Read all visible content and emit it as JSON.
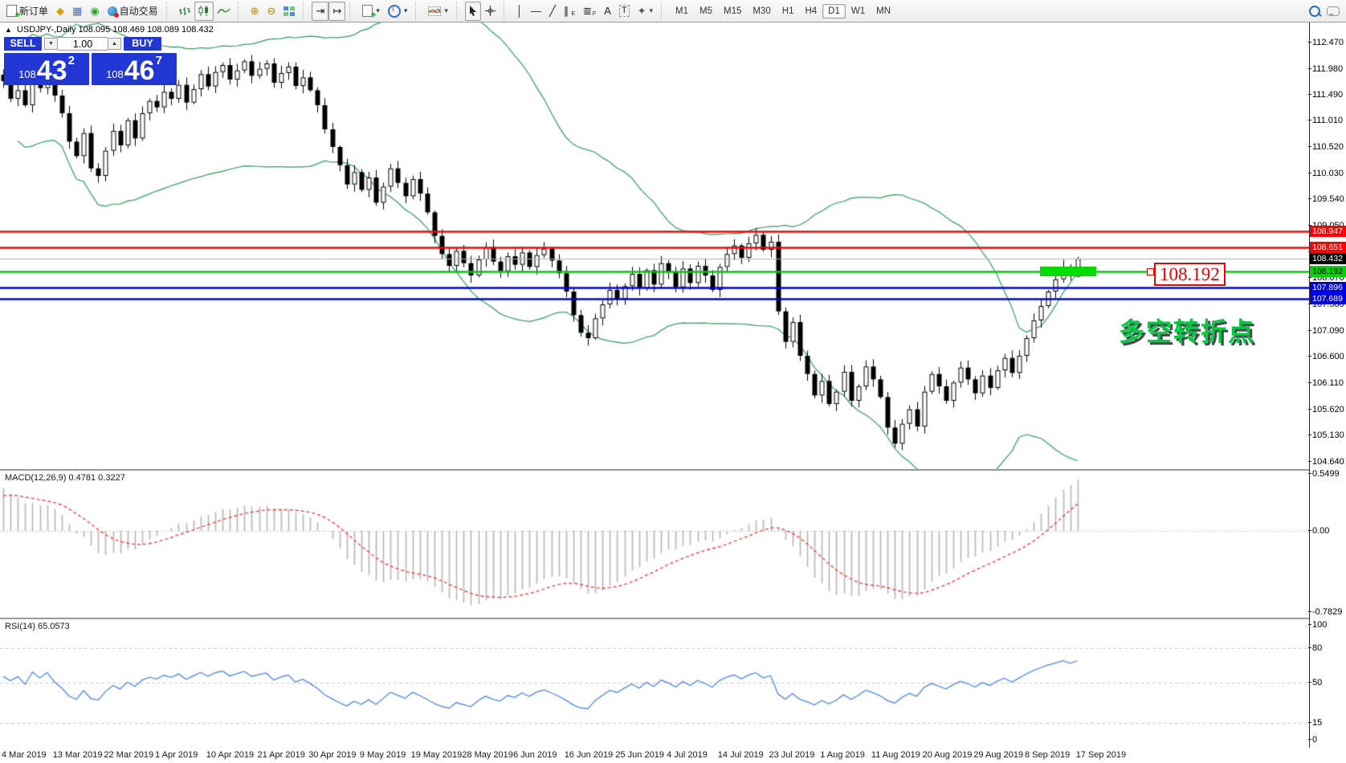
{
  "toolbar": {
    "new_order_label": "新订单",
    "auto_trading_label": "自动交易",
    "timeframes": [
      "M1",
      "M5",
      "M15",
      "M30",
      "H1",
      "H4",
      "D1",
      "W1",
      "MN"
    ],
    "active_timeframe": "D1",
    "text_tool_label": "A",
    "label_tool_label": "T"
  },
  "trade_panel": {
    "sell_label": "SELL",
    "buy_label": "BUY",
    "volume": "1.00",
    "sell_price": {
      "small": "108",
      "big": "43",
      "sup": "2"
    },
    "buy_price": {
      "small": "108",
      "big": "46",
      "sup": "7"
    }
  },
  "chart_title": {
    "symbol_line": "USDJPY-,Daily  108.095 108.469 108.089 108.432"
  },
  "chart_data": {
    "type": "candlestick",
    "symbol": "USDJPY-",
    "timeframe": "Daily",
    "quote": {
      "open": 108.095,
      "high": 108.469,
      "low": 108.089,
      "close": 108.432
    },
    "ylim": [
      104.56,
      112.845
    ],
    "closes": [
      111.75,
      111.42,
      111.58,
      111.3,
      111.85,
      111.62,
      111.9,
      111.48,
      111.15,
      110.62,
      110.35,
      110.78,
      110.12,
      109.98,
      110.45,
      110.82,
      110.55,
      111.02,
      110.68,
      111.15,
      111.38,
      111.26,
      111.55,
      111.42,
      111.68,
      111.35,
      111.6,
      111.88,
      111.65,
      111.92,
      112.05,
      111.78,
      111.95,
      112.12,
      111.85,
      111.98,
      112.08,
      111.72,
      111.9,
      112.02,
      111.66,
      111.82,
      111.58,
      111.3,
      110.85,
      110.52,
      110.18,
      109.82,
      110.05,
      109.72,
      109.95,
      109.48,
      109.78,
      110.12,
      109.85,
      109.6,
      109.92,
      109.65,
      109.3,
      108.86,
      108.52,
      108.3,
      108.58,
      108.35,
      108.12,
      108.42,
      108.65,
      108.38,
      108.2,
      108.48,
      108.32,
      108.55,
      108.28,
      108.5,
      108.62,
      108.4,
      108.16,
      107.82,
      107.38,
      107.05,
      106.95,
      107.32,
      107.58,
      107.85,
      107.68,
      107.92,
      108.15,
      107.88,
      108.22,
      107.95,
      108.35,
      108.18,
      107.9,
      108.25,
      107.98,
      108.3,
      108.12,
      107.85,
      108.28,
      108.52,
      108.68,
      108.45,
      108.72,
      108.88,
      108.6,
      108.75,
      107.45,
      106.88,
      107.25,
      106.62,
      106.28,
      105.88,
      106.15,
      105.72,
      105.95,
      106.32,
      105.78,
      106.05,
      106.42,
      106.18,
      105.85,
      105.28,
      104.98,
      105.35,
      105.62,
      105.3,
      105.95,
      106.28,
      106.05,
      105.78,
      106.12,
      106.4,
      106.18,
      105.92,
      106.25,
      106.02,
      106.35,
      106.58,
      106.3,
      106.62,
      106.95,
      107.28,
      107.55,
      107.82,
      108.05,
      108.28,
      108.15,
      108.432
    ],
    "price_ticks": [
      "112.470",
      "111.980",
      "111.490",
      "111.010",
      "110.520",
      "110.030",
      "109.540",
      "109.050",
      "108.560",
      "108.070",
      "107.580",
      "107.090",
      "106.600",
      "106.110",
      "105.620",
      "105.130",
      "104.640"
    ],
    "hlines": [
      {
        "price": 108.947,
        "label": "108.947",
        "color": "red"
      },
      {
        "price": 108.651,
        "label": "108.651",
        "color": "red"
      },
      {
        "price": 108.432,
        "label": "108.432",
        "color": "black"
      },
      {
        "price": 108.192,
        "label": "108.192",
        "color": "green"
      },
      {
        "price": 107.896,
        "label": "107.896",
        "color": "blue"
      },
      {
        "price": 107.689,
        "label": "107.689",
        "color": "blue"
      }
    ],
    "price_callout": "108.192",
    "annotation": "多空转折点",
    "dates": [
      "4 Mar 2019",
      "13 Mar 2019",
      "22 Mar 2019",
      "1 Apr 2019",
      "10 Apr 2019",
      "21 Apr 2019",
      "30 Apr 2019",
      "9 May 2019",
      "19 May 2019",
      "28 May 2019",
      "6 Jun 2019",
      "16 Jun 2019",
      "25 Jun 2019",
      "4 Jul 2019",
      "14 Jul 2019",
      "23 Jul 2019",
      "1 Aug 2019",
      "11 Aug 2019",
      "20 Aug 2019",
      "29 Aug 2019",
      "8 Sep 2019",
      "17 Sep 2019"
    ],
    "macd": {
      "label": "MACD(12,26,9) 0.4781 0.3227",
      "ticks": [
        "0.5499",
        "0.00",
        "-0.7829"
      ],
      "tick_values": [
        0.5499,
        0.0,
        -0.7829
      ]
    },
    "rsi": {
      "label": "RSI(14) 65.0573",
      "ticks": [
        "100",
        "80",
        "50",
        "15",
        "0"
      ],
      "tick_values": [
        100,
        80,
        50,
        15,
        0
      ],
      "levels": [
        80,
        50,
        15
      ]
    },
    "colors": {
      "band": "#2E9B5B",
      "up_body": "#FFFFFF",
      "down_body": "#000000",
      "wick": "#000000",
      "hline_red": "#FF0000",
      "hline_blue": "#0000E6",
      "hline_green": "#00CC00",
      "current_price_line": "#B0B0B0",
      "macd_hist": "#B4B4B4",
      "macd_signal": "#FF2020",
      "rsi_line": "#4A86E8",
      "panel_blue": "#2236D6"
    }
  }
}
